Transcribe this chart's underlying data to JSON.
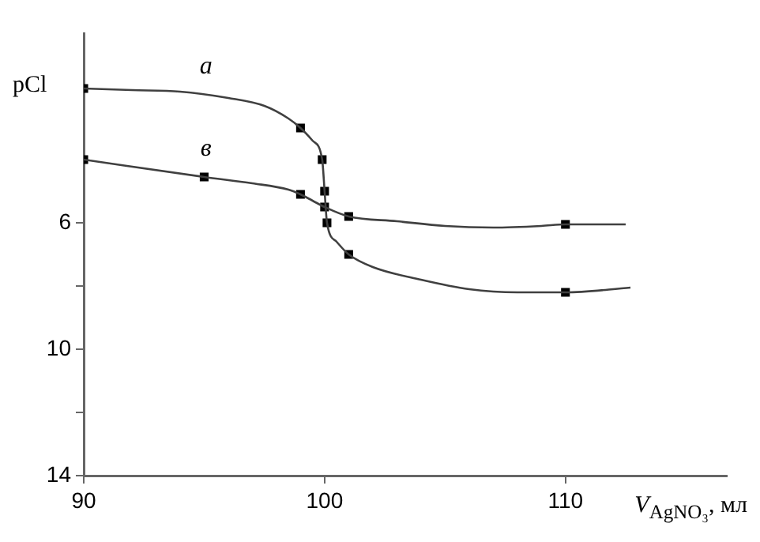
{
  "chart_data": {
    "type": "line",
    "xlabel": "V$_{AgNO₃}$, мл",
    "ylabel": "pCl",
    "xlim": [
      90,
      116.7
    ],
    "xticks": [
      90,
      100,
      110
    ],
    "ylim": [
      14,
      0
    ],
    "yticks": [
      6,
      {
        "value": 8,
        "label": null
      },
      10,
      {
        "value": 12,
        "label": null
      },
      14
    ],
    "grid": false,
    "legend": false,
    "series": [
      {
        "name": "a",
        "color": "#404040",
        "marker": "none",
        "x": [
          90,
          92,
          94,
          96,
          97.5,
          98.5,
          99,
          99.5,
          99.9,
          100,
          100.1,
          100.5,
          101,
          102,
          104,
          106,
          108,
          110,
          112.7
        ],
        "values": [
          1.75,
          1.8,
          1.85,
          2.05,
          2.3,
          2.7,
          3.0,
          3.4,
          4.0,
          5.0,
          6.0,
          6.6,
          7.0,
          7.4,
          7.8,
          8.1,
          8.2,
          8.2,
          8.05
        ]
      },
      {
        "name": "в",
        "color": "#404040",
        "marker": "none",
        "x": [
          90,
          95,
          97,
          98.5,
          99,
          99.5,
          100,
          101,
          103,
          105,
          107,
          109,
          110,
          112.5
        ],
        "values": [
          4.0,
          4.55,
          4.75,
          4.95,
          5.1,
          5.3,
          5.5,
          5.8,
          5.95,
          6.1,
          6.15,
          6.1,
          6.05,
          6.05
        ]
      },
      {
        "type": "scatter",
        "color": "#000000",
        "marker": "square",
        "x": [
          90,
          99,
          99.9,
          100,
          100,
          100.1,
          101,
          110
        ],
        "values": [
          1.75,
          3.0,
          4.0,
          5.0,
          5.5,
          6.0,
          7.0,
          8.2
        ]
      },
      {
        "type": "scatter",
        "color": "#000000",
        "marker": "square",
        "x": [
          90,
          95,
          99,
          101,
          110
        ],
        "values": [
          4.0,
          4.55,
          5.1,
          5.8,
          6.05
        ]
      }
    ]
  }
}
